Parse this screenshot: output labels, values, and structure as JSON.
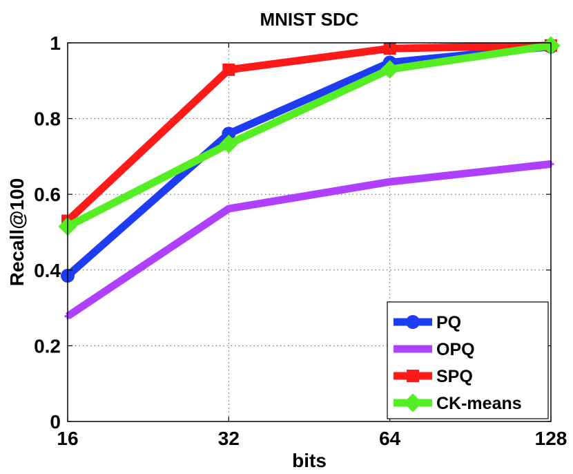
{
  "chart_data": {
    "type": "line",
    "title": "MNIST SDC",
    "xlabel": "bits",
    "ylabel": "Recall@100",
    "categories": [
      "16",
      "32",
      "64",
      "128"
    ],
    "ylim": [
      0,
      1
    ],
    "yticks": [
      "0",
      "0.2",
      "0.4",
      "0.6",
      "0.8",
      "1"
    ],
    "grid": true,
    "legend_position": "bottom-right",
    "series": [
      {
        "name": "PQ",
        "values": [
          0.385,
          0.76,
          0.948,
          0.99
        ],
        "color": "#1f3cf5",
        "marker": "circle"
      },
      {
        "name": "OPQ",
        "values": [
          0.278,
          0.562,
          0.633,
          0.68
        ],
        "color": "#b040ff",
        "marker": "star"
      },
      {
        "name": "SPQ",
        "values": [
          0.53,
          0.929,
          0.985,
          0.993
        ],
        "color": "#ff1a1a",
        "marker": "square"
      },
      {
        "name": "CK-means",
        "values": [
          0.515,
          0.733,
          0.93,
          0.993
        ],
        "color": "#55ee22",
        "marker": "diamond"
      }
    ]
  }
}
